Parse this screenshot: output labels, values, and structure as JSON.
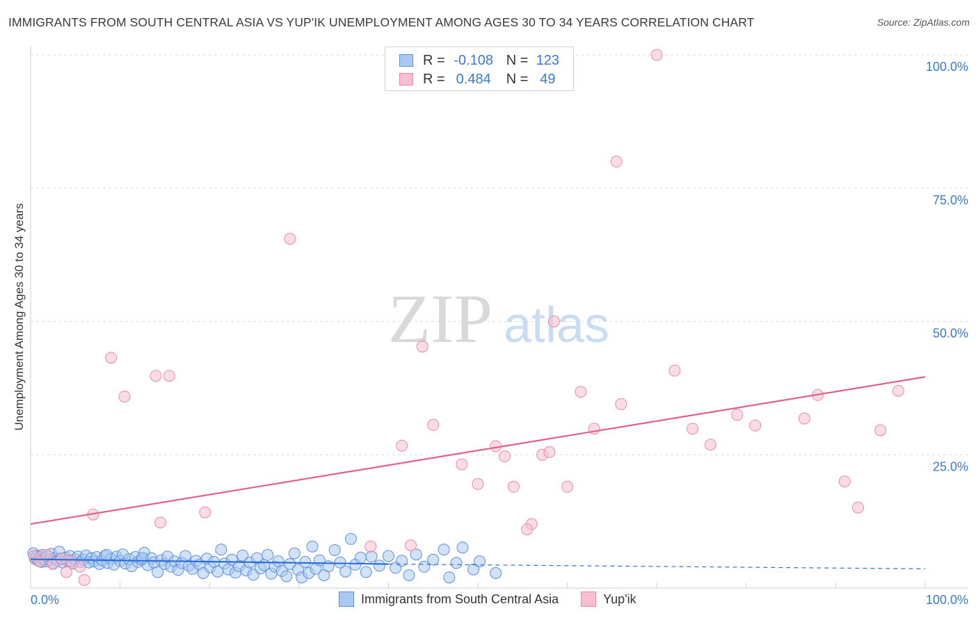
{
  "header": {
    "title": "IMMIGRANTS FROM SOUTH CENTRAL ASIA VS YUP'IK UNEMPLOYMENT AMONG AGES 30 TO 34 YEARS CORRELATION CHART",
    "source": "Source: ZipAtlas.com"
  },
  "watermark": {
    "zip": "ZIP",
    "atlas": "atlas"
  },
  "legend": {
    "r_label": "R =",
    "n_label": "N =",
    "rows": [
      {
        "name": "Immigrants from South Central Asia",
        "r": "-0.108",
        "n": "123"
      },
      {
        "name": "Yup'ik",
        "r": "0.484",
        "n": "49"
      }
    ]
  },
  "colors": {
    "blue_fill": "#a9c9f2",
    "blue_stroke": "#5a8fdc",
    "blue_line": "#2a6fd6",
    "pink_fill": "#f7bfd0",
    "pink_stroke": "#e58aa8",
    "pink_line": "#e0608a",
    "axis_text": "#3b78d0",
    "grid": "#dddddd"
  },
  "chart_data": {
    "type": "scatter",
    "title": "IMMIGRANTS FROM SOUTH CENTRAL ASIA VS YUP'IK UNEMPLOYMENT AMONG AGES 30 TO 34 YEARS CORRELATION CHART",
    "xlabel": "",
    "ylabel": "Unemployment Among Ages 30 to 34 years",
    "xlim": [
      0,
      100
    ],
    "ylim": [
      0,
      100
    ],
    "x_tick_labels": [
      "0.0%",
      "100.0%"
    ],
    "y_ticks": [
      25,
      50,
      75,
      100
    ],
    "y_tick_labels": [
      "25.0%",
      "50.0%",
      "75.0%",
      "100.0%"
    ],
    "grid": true,
    "series": [
      {
        "name": "Immigrants from South Central Asia",
        "trend": {
          "x": [
            0,
            40
          ],
          "y": [
            5.4,
            4.5
          ],
          "dashed_to": [
            100,
            3.6
          ]
        },
        "points": [
          [
            0.3,
            6.5
          ],
          [
            0.5,
            5.5
          ],
          [
            0.7,
            6.0
          ],
          [
            0.8,
            5.2
          ],
          [
            1.0,
            5.8
          ],
          [
            1.2,
            4.9
          ],
          [
            1.3,
            6.2
          ],
          [
            1.5,
            5.4
          ],
          [
            1.7,
            5.0
          ],
          [
            1.9,
            5.9
          ],
          [
            2.1,
            5.3
          ],
          [
            2.3,
            6.4
          ],
          [
            2.5,
            4.7
          ],
          [
            2.7,
            5.6
          ],
          [
            3.0,
            5.1
          ],
          [
            3.2,
            6.8
          ],
          [
            3.4,
            5.5
          ],
          [
            3.6,
            4.8
          ],
          [
            3.9,
            5.7
          ],
          [
            4.1,
            5.2
          ],
          [
            4.4,
            6.0
          ],
          [
            4.7,
            4.6
          ],
          [
            5.0,
            5.4
          ],
          [
            5.3,
            5.9
          ],
          [
            5.6,
            4.9
          ],
          [
            5.9,
            5.3
          ],
          [
            6.2,
            6.1
          ],
          [
            6.5,
            4.8
          ],
          [
            6.8,
            5.6
          ],
          [
            7.1,
            5.0
          ],
          [
            7.4,
            5.8
          ],
          [
            7.7,
            4.5
          ],
          [
            8.0,
            5.2
          ],
          [
            8.3,
            6.0
          ],
          [
            8.6,
            4.7
          ],
          [
            9.0,
            5.5
          ],
          [
            9.3,
            4.4
          ],
          [
            9.6,
            5.9
          ],
          [
            10.0,
            5.1
          ],
          [
            10.3,
            6.3
          ],
          [
            10.6,
            4.6
          ],
          [
            11.0,
            5.4
          ],
          [
            11.3,
            4.1
          ],
          [
            11.7,
            5.8
          ],
          [
            12.0,
            4.9
          ],
          [
            12.4,
            5.3
          ],
          [
            12.7,
            6.6
          ],
          [
            13.1,
            4.3
          ],
          [
            13.5,
            5.6
          ],
          [
            13.8,
            4.8
          ],
          [
            14.2,
            3.0
          ],
          [
            14.6,
            5.2
          ],
          [
            15.0,
            4.5
          ],
          [
            15.3,
            5.9
          ],
          [
            15.7,
            4.0
          ],
          [
            16.1,
            5.0
          ],
          [
            16.5,
            3.4
          ],
          [
            16.9,
            4.7
          ],
          [
            17.3,
            6.0
          ],
          [
            17.7,
            4.2
          ],
          [
            18.1,
            3.6
          ],
          [
            18.5,
            5.1
          ],
          [
            18.9,
            4.4
          ],
          [
            19.3,
            2.8
          ],
          [
            19.7,
            5.5
          ],
          [
            20.1,
            3.9
          ],
          [
            20.5,
            4.9
          ],
          [
            20.9,
            3.1
          ],
          [
            21.3,
            7.2
          ],
          [
            21.7,
            4.6
          ],
          [
            22.1,
            3.5
          ],
          [
            22.5,
            5.3
          ],
          [
            22.9,
            2.9
          ],
          [
            23.3,
            4.1
          ],
          [
            23.7,
            6.1
          ],
          [
            24.1,
            3.3
          ],
          [
            24.5,
            4.8
          ],
          [
            24.9,
            2.5
          ],
          [
            25.3,
            5.6
          ],
          [
            25.7,
            3.7
          ],
          [
            26.1,
            4.3
          ],
          [
            26.5,
            6.2
          ],
          [
            26.9,
            2.7
          ],
          [
            27.3,
            4.0
          ],
          [
            27.7,
            5.0
          ],
          [
            28.1,
            3.2
          ],
          [
            28.6,
            2.2
          ],
          [
            29.0,
            4.5
          ],
          [
            29.5,
            6.5
          ],
          [
            29.9,
            3.4
          ],
          [
            30.3,
            2.0
          ],
          [
            30.7,
            4.9
          ],
          [
            31.1,
            2.8
          ],
          [
            31.5,
            7.8
          ],
          [
            31.9,
            3.6
          ],
          [
            32.3,
            5.2
          ],
          [
            32.8,
            2.4
          ],
          [
            33.3,
            4.1
          ],
          [
            34.0,
            7.1
          ],
          [
            34.6,
            4.8
          ],
          [
            35.2,
            3.1
          ],
          [
            35.8,
            9.2
          ],
          [
            36.3,
            4.4
          ],
          [
            36.9,
            5.7
          ],
          [
            37.5,
            3.0
          ],
          [
            38.1,
            5.9
          ],
          [
            39.0,
            4.2
          ],
          [
            40.0,
            6.0
          ],
          [
            40.8,
            3.8
          ],
          [
            41.5,
            5.1
          ],
          [
            42.3,
            2.4
          ],
          [
            43.1,
            6.3
          ],
          [
            44.0,
            4.0
          ],
          [
            45.0,
            5.3
          ],
          [
            46.2,
            7.2
          ],
          [
            46.8,
            2.0
          ],
          [
            47.6,
            4.7
          ],
          [
            48.3,
            7.6
          ],
          [
            49.5,
            3.5
          ],
          [
            50.2,
            5.0
          ],
          [
            8.5,
            6.2
          ],
          [
            12.5,
            5.6
          ],
          [
            52.0,
            2.8
          ]
        ]
      },
      {
        "name": "Yup'ik",
        "trend": {
          "x": [
            0,
            100
          ],
          "y": [
            12.0,
            39.6
          ]
        },
        "points": [
          [
            0.4,
            6.0
          ],
          [
            1.0,
            5.0
          ],
          [
            1.8,
            6.2
          ],
          [
            2.5,
            4.5
          ],
          [
            3.5,
            5.5
          ],
          [
            4.0,
            3.0
          ],
          [
            4.5,
            5.0
          ],
          [
            5.5,
            4.0
          ],
          [
            6.0,
            1.5
          ],
          [
            7.0,
            13.8
          ],
          [
            9.0,
            43.2
          ],
          [
            10.5,
            35.9
          ],
          [
            14.0,
            39.8
          ],
          [
            15.5,
            39.8
          ],
          [
            14.5,
            12.3
          ],
          [
            19.5,
            14.2
          ],
          [
            29.0,
            65.5
          ],
          [
            38.0,
            7.8
          ],
          [
            42.5,
            8.0
          ],
          [
            45.0,
            30.6
          ],
          [
            41.5,
            26.7
          ],
          [
            43.8,
            45.3
          ],
          [
            48.2,
            23.2
          ],
          [
            50.0,
            19.5
          ],
          [
            53.0,
            24.7
          ],
          [
            52.0,
            26.6
          ],
          [
            54.0,
            19.0
          ],
          [
            56.0,
            12.0
          ],
          [
            55.5,
            11.0
          ],
          [
            57.2,
            25.0
          ],
          [
            58.0,
            25.5
          ],
          [
            58.5,
            50.0
          ],
          [
            60.0,
            19.0
          ],
          [
            61.5,
            36.8
          ],
          [
            63.0,
            29.9
          ],
          [
            65.5,
            80.0
          ],
          [
            66.0,
            34.5
          ],
          [
            70.0,
            100.0
          ],
          [
            72.0,
            40.8
          ],
          [
            74.0,
            29.9
          ],
          [
            76.0,
            26.9
          ],
          [
            79.0,
            32.5
          ],
          [
            81.0,
            30.5
          ],
          [
            86.5,
            31.8
          ],
          [
            88.0,
            36.2
          ],
          [
            91.0,
            20.0
          ],
          [
            92.5,
            15.1
          ],
          [
            95.0,
            29.6
          ],
          [
            97.0,
            37.0
          ]
        ]
      }
    ]
  }
}
